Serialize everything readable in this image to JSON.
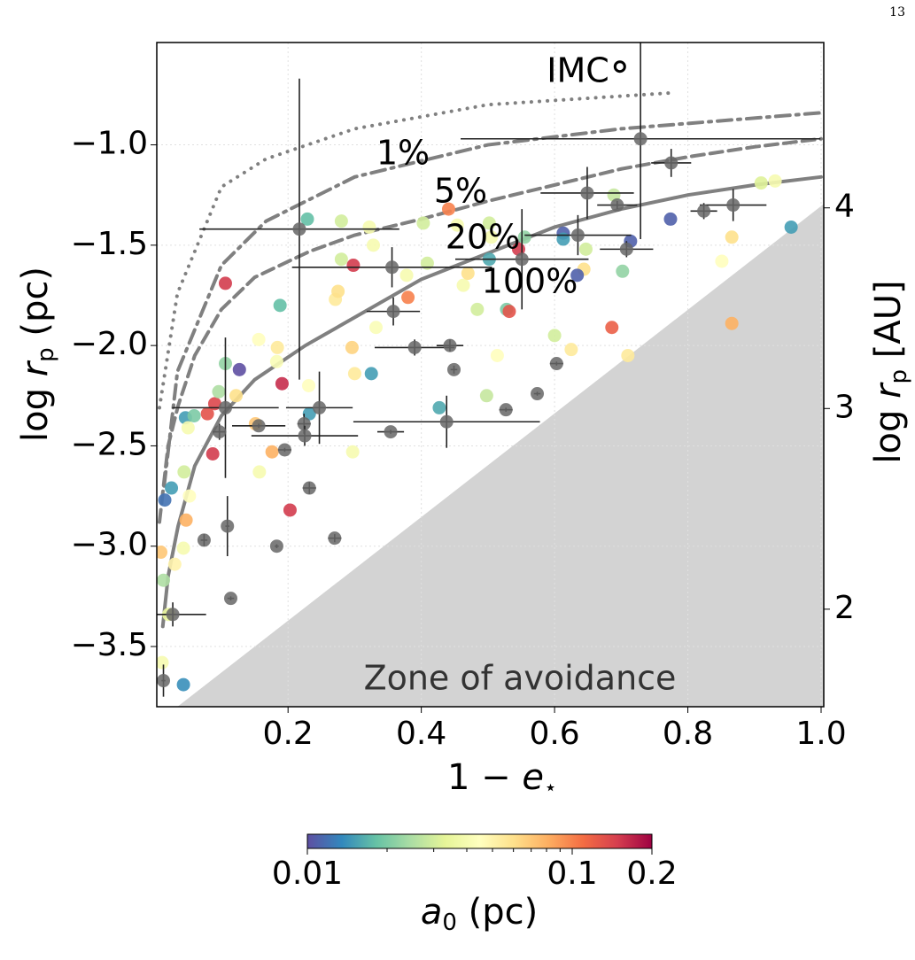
{
  "page_number": "13",
  "chart_data": {
    "type": "scatter",
    "xlabel": {
      "pre": "1 − ",
      "var": "e",
      "sub": "⋆"
    },
    "ylabel": {
      "pre": "log ",
      "var": "r",
      "sub": "p",
      "post": " (pc)"
    },
    "y2label": {
      "pre": "log ",
      "var": "r",
      "sub": "p",
      "post": " [AU]"
    },
    "xlim": [
      0.003,
      1.004
    ],
    "xticks": [
      0.2,
      0.4,
      0.6,
      0.8,
      {
        "value": 1,
        "label": "1.0"
      }
    ],
    "ylim": [
      -3.8,
      -0.49
    ],
    "yticks": [
      {
        "value": -1,
        "label": "−1.0"
      },
      {
        "value": -1.5,
        "label": "−1.5"
      },
      {
        "value": -2,
        "label": "−2.0"
      },
      {
        "value": -2.5,
        "label": "−2.5"
      },
      {
        "value": -3,
        "label": "−3.0"
      },
      {
        "value": -3.5,
        "label": "−3.5"
      }
    ],
    "y2lim": [
      1.514,
      4.824
    ],
    "y2ticks": [
      2,
      3,
      4
    ],
    "grid": true,
    "zone": {
      "label": "Zone of avoidance",
      "color": "#d3d3d3",
      "x": [
        0.034,
        1.004,
        1.004
      ],
      "y": [
        -3.8,
        -1.295,
        -3.8
      ]
    },
    "curves": [
      {
        "label": "1%",
        "style": "dotted",
        "x": [
          0.007,
          0.034,
          0.1,
          0.167,
          0.3,
          0.5,
          0.78
        ],
        "y": [
          -2.31,
          -1.74,
          -1.21,
          -1.07,
          -0.92,
          -0.8,
          -0.74
        ]
      },
      {
        "label": "5%",
        "style": "dashdot",
        "x": [
          0.014,
          0.034,
          0.1,
          0.167,
          0.3,
          0.5,
          0.7,
          1.0
        ],
        "y": [
          -2.7,
          -2.13,
          -1.6,
          -1.38,
          -1.16,
          -1.0,
          -0.92,
          -0.84
        ]
      },
      {
        "label": "20%",
        "style": "dashed",
        "x": [
          0.007,
          0.02,
          0.035,
          0.06,
          0.1,
          0.15,
          0.233,
          0.3,
          0.4,
          0.5,
          0.6,
          0.7,
          0.8,
          0.9,
          1.0
        ],
        "y": [
          -2.88,
          -2.5,
          -2.3,
          -2.05,
          -1.82,
          -1.66,
          -1.53,
          -1.45,
          -1.37,
          -1.28,
          -1.2,
          -1.12,
          -1.06,
          -1.01,
          -0.97
        ]
      },
      {
        "label": "100%",
        "style": "solid",
        "x": [
          0.012,
          0.02,
          0.035,
          0.06,
          0.1,
          0.15,
          0.226,
          0.3,
          0.4,
          0.5,
          0.6,
          0.7,
          0.8,
          0.9,
          1.0
        ],
        "y": [
          -3.4,
          -3.15,
          -2.9,
          -2.6,
          -2.35,
          -2.17,
          -2.0,
          -1.86,
          -1.67,
          -1.54,
          -1.41,
          -1.32,
          -1.25,
          -1.2,
          -1.16
        ]
      }
    ],
    "curve_color": "#808080",
    "imc": {
      "label": "IMC",
      "x": 0.698,
      "y": -0.61
    },
    "points": {
      "x": [
        0.015,
        0.025,
        0.009,
        0.03,
        0.013,
        0.021,
        0.011,
        0.043,
        0.046,
        0.05,
        0.059,
        0.079,
        0.09,
        0.087,
        0.047,
        0.052,
        0.043,
        0.044,
        0.096,
        0.122,
        0.127,
        0.106,
        0.106,
        0.156,
        0.151,
        0.157,
        0.176,
        0.184,
        0.183,
        0.191,
        0.188,
        0.229,
        0.231,
        0.232,
        0.203,
        0.28,
        0.28,
        0.271,
        0.275,
        0.298,
        0.296,
        0.3,
        0.297,
        0.325,
        0.322,
        0.332,
        0.328,
        0.378,
        0.38,
        0.403,
        0.409,
        0.427,
        0.463,
        0.47,
        0.441,
        0.454,
        0.484,
        0.498,
        0.502,
        0.502,
        0.505,
        0.514,
        0.528,
        0.532,
        0.546,
        0.555,
        0.6,
        0.625,
        0.613,
        0.613,
        0.644,
        0.647,
        0.634,
        0.689,
        0.702,
        0.686,
        0.71,
        0.714,
        0.774,
        0.866,
        0.851,
        0.866,
        0.91,
        0.931,
        0.955
      ],
      "y": [
        -2.77,
        -2.71,
        -3.03,
        -3.09,
        -3.17,
        -3.34,
        -3.58,
        -3.69,
        -2.36,
        -2.41,
        -2.35,
        -2.34,
        -2.29,
        -2.54,
        -2.87,
        -2.75,
        -3.01,
        -2.63,
        -2.23,
        -2.25,
        -2.12,
        -1.69,
        -2.09,
        -1.97,
        -2.39,
        -2.63,
        -2.53,
        -2.01,
        -2.08,
        -2.19,
        -1.8,
        -1.37,
        -2.2,
        -2.34,
        -2.82,
        -1.38,
        -1.57,
        -1.77,
        -1.73,
        -1.6,
        -2.01,
        -2.14,
        -2.53,
        -2.14,
        -1.41,
        -1.91,
        -1.5,
        -1.65,
        -1.76,
        -1.39,
        -1.59,
        -2.31,
        -1.7,
        -1.64,
        -1.32,
        -1.4,
        -1.82,
        -2.25,
        -1.57,
        -1.39,
        -1.46,
        -2.05,
        -1.82,
        -1.83,
        -1.52,
        -1.46,
        -1.95,
        -2.02,
        -1.44,
        -1.47,
        -1.62,
        -1.52,
        -1.65,
        -1.25,
        -1.63,
        -1.91,
        -2.05,
        -1.48,
        -1.37,
        -1.46,
        -1.58,
        -1.89,
        -1.19,
        -1.18,
        -1.41
      ],
      "a0": [
        0.012,
        0.015,
        0.07,
        0.05,
        0.025,
        0.035,
        0.04,
        0.014,
        0.015,
        0.04,
        0.02,
        0.13,
        0.14,
        0.15,
        0.08,
        0.045,
        0.04,
        0.03,
        0.025,
        0.06,
        0.01,
        0.15,
        0.022,
        0.045,
        0.07,
        0.04,
        0.08,
        0.055,
        0.042,
        0.16,
        0.018,
        0.018,
        0.045,
        0.015,
        0.15,
        0.03,
        0.03,
        0.055,
        0.06,
        0.15,
        0.065,
        0.055,
        0.04,
        0.015,
        0.04,
        0.042,
        0.04,
        0.04,
        0.1,
        0.03,
        0.03,
        0.016,
        0.04,
        0.06,
        0.1,
        0.04,
        0.03,
        0.028,
        0.016,
        0.03,
        0.04,
        0.045,
        0.02,
        0.13,
        0.15,
        0.022,
        0.03,
        0.055,
        0.011,
        0.015,
        0.06,
        0.03,
        0.011,
        0.028,
        0.022,
        0.12,
        0.055,
        0.011,
        0.011,
        0.06,
        0.045,
        0.08,
        0.032,
        0.04,
        0.015
      ]
    },
    "measured": {
      "color": "#666666",
      "x": [
        0.729,
        0.775,
        0.868,
        0.824,
        0.694,
        0.649,
        0.635,
        0.708,
        0.551,
        0.356,
        0.358,
        0.39,
        0.443,
        0.449,
        0.603,
        0.574,
        0.527,
        0.438,
        0.354,
        0.247,
        0.217,
        0.224,
        0.225,
        0.232,
        0.27,
        0.195,
        0.183,
        0.156,
        0.106,
        0.097,
        0.109,
        0.074,
        0.114,
        0.027,
        0.013
      ],
      "y": [
        -0.97,
        -1.09,
        -1.3,
        -1.33,
        -1.3,
        -1.24,
        -1.45,
        -1.52,
        -1.57,
        -1.61,
        -1.83,
        -2.01,
        -2.0,
        -2.12,
        -2.09,
        -2.24,
        -2.32,
        -2.38,
        -2.43,
        -2.31,
        -1.42,
        -2.39,
        -2.45,
        -2.71,
        -2.96,
        -2.52,
        -3.0,
        -2.4,
        -2.31,
        -2.43,
        -2.9,
        -2.97,
        -3.26,
        -3.34,
        -3.67
      ],
      "xerr": [
        0.27,
        0.03,
        0.05,
        0.02,
        0.03,
        0.07,
        0.08,
        0.04,
        0.1,
        0.15,
        0.04,
        0.06,
        0.02,
        0.005,
        0.01,
        0.005,
        0.01,
        0.14,
        0.02,
        0.05,
        0.15,
        0.01,
        0.08,
        0.01,
        0.01,
        0.01,
        0.003,
        0.04,
        0.08,
        0.01,
        0.003,
        0.005,
        0.005,
        0.05,
        0.003
      ],
      "yerr": [
        0.5,
        0.07,
        0.08,
        0.04,
        0.02,
        0.13,
        0.1,
        0.04,
        0.25,
        0.1,
        0.07,
        0.04,
        0.03,
        0.02,
        0.01,
        0.01,
        0.01,
        0.13,
        0.01,
        0.18,
        0.75,
        0.05,
        0.05,
        0.03,
        0.02,
        0.01,
        0.01,
        0.01,
        0.35,
        0.04,
        0.15,
        0.03,
        0.01,
        0.06,
        0.08
      ]
    },
    "colorbar": {
      "scale": "log",
      "lim": [
        0.01,
        0.2
      ],
      "ticks": [
        {
          "value": 0.01,
          "label": "0.01"
        },
        0.1,
        0.2
      ],
      "minor_ticks": [
        0.02,
        0.03,
        0.04,
        0.05,
        0.06,
        0.07,
        0.08,
        0.09
      ],
      "label": {
        "var": "a",
        "sub": "0",
        "post": " (pc)"
      },
      "colormap": [
        "#5e4fa2",
        "#3288bd",
        "#66c2a5",
        "#abdda4",
        "#e6f598",
        "#ffffbf",
        "#fee08b",
        "#fdae61",
        "#f46d43",
        "#d53e4f",
        "#9e0142"
      ]
    }
  }
}
